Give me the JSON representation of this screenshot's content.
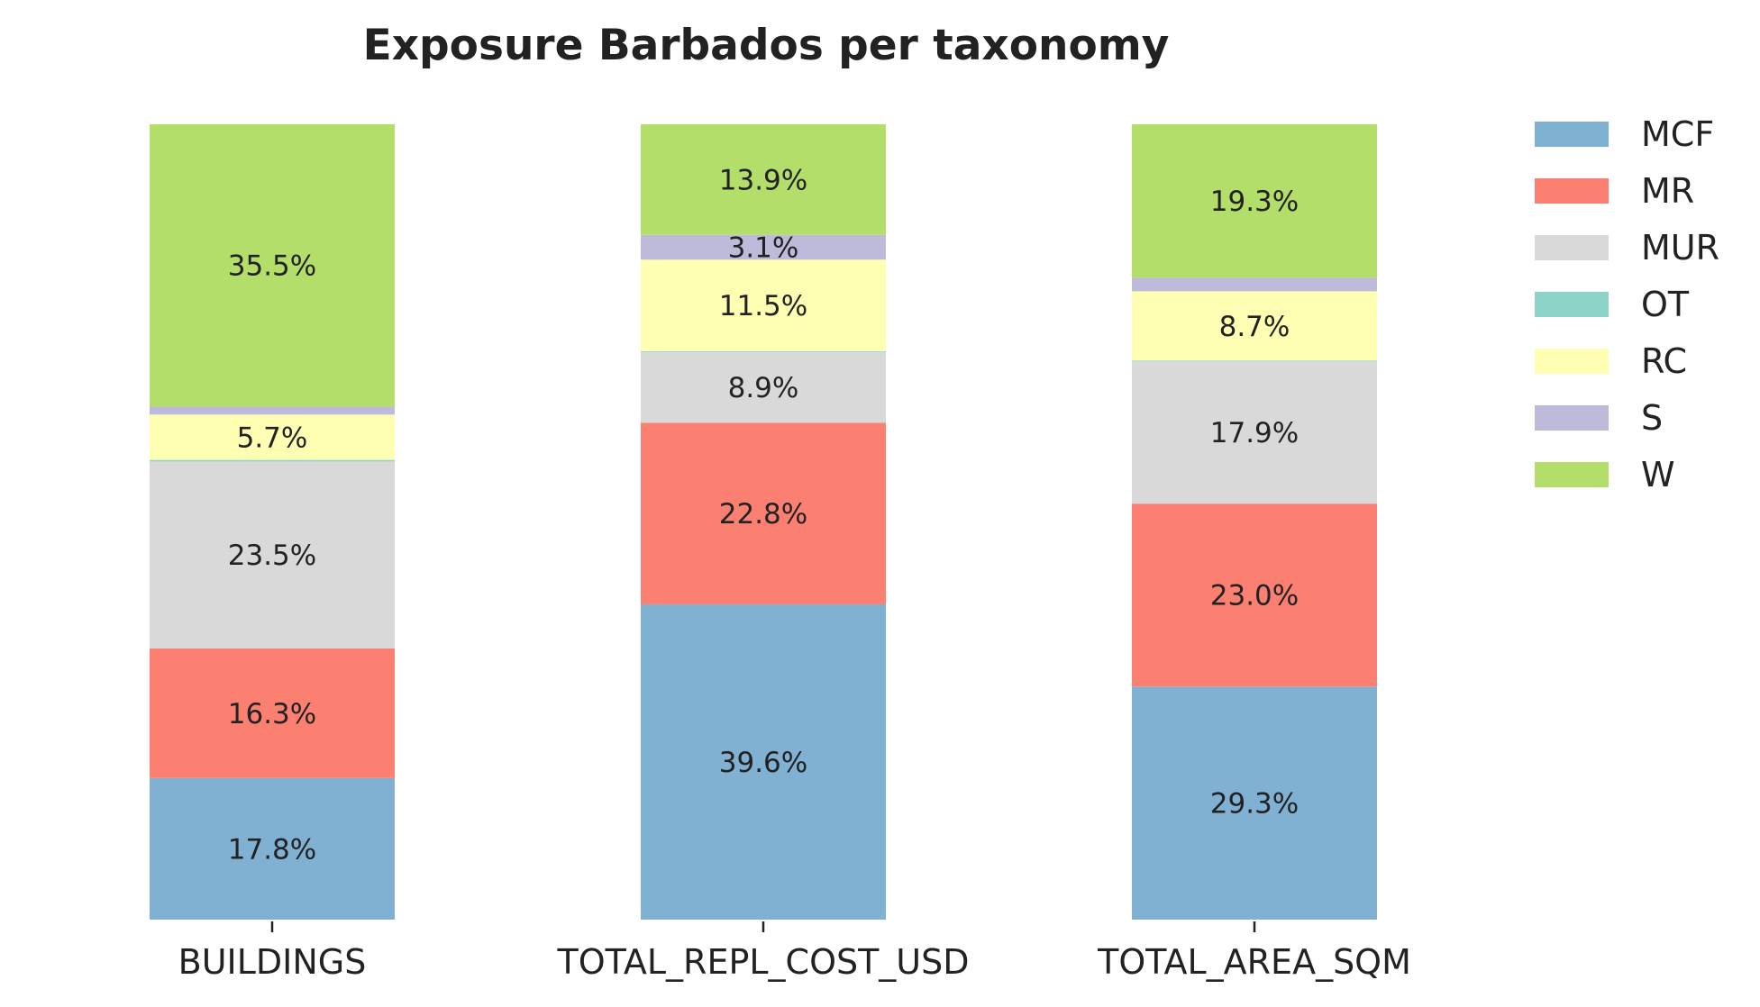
{
  "chart_data": {
    "type": "bar",
    "stacked": true,
    "title": "Exposure Barbados per taxonomy",
    "xlabel": "",
    "ylabel": "",
    "ylim": [
      0,
      100
    ],
    "categories": [
      "BUILDINGS",
      "TOTAL_REPL_COST_USD",
      "TOTAL_AREA_SQM"
    ],
    "series": [
      {
        "name": "MCF",
        "color": "#80b1d3",
        "values": [
          17.8,
          39.6,
          29.3
        ],
        "labels": [
          "17.8%",
          "39.6%",
          "29.3%"
        ]
      },
      {
        "name": "MR",
        "color": "#fb8072",
        "values": [
          16.3,
          22.8,
          23.0
        ],
        "labels": [
          "16.3%",
          "22.8%",
          "23.0%"
        ]
      },
      {
        "name": "MUR",
        "color": "#d9d9d9",
        "values": [
          23.5,
          8.9,
          17.9
        ],
        "labels": [
          "23.5%",
          "8.9%",
          "17.9%"
        ]
      },
      {
        "name": "OT",
        "color": "#8dd3c7",
        "values": [
          0.2,
          0.1,
          0.1
        ],
        "labels": [
          "",
          "",
          ""
        ]
      },
      {
        "name": "RC",
        "color": "#ffffb3",
        "values": [
          5.7,
          11.5,
          8.7
        ],
        "labels": [
          "5.7%",
          "11.5%",
          "8.7%"
        ]
      },
      {
        "name": "S",
        "color": "#bebada",
        "values": [
          1.0,
          3.1,
          1.7
        ],
        "labels": [
          "",
          "3.1%",
          ""
        ]
      },
      {
        "name": "W",
        "color": "#b3de69",
        "values": [
          35.5,
          13.9,
          19.3
        ],
        "labels": [
          "35.5%",
          "13.9%",
          "19.3%"
        ]
      }
    ],
    "legend": {
      "position": "right",
      "entries": [
        "MCF",
        "MR",
        "MUR",
        "OT",
        "RC",
        "S",
        "W"
      ]
    },
    "grid": false
  }
}
